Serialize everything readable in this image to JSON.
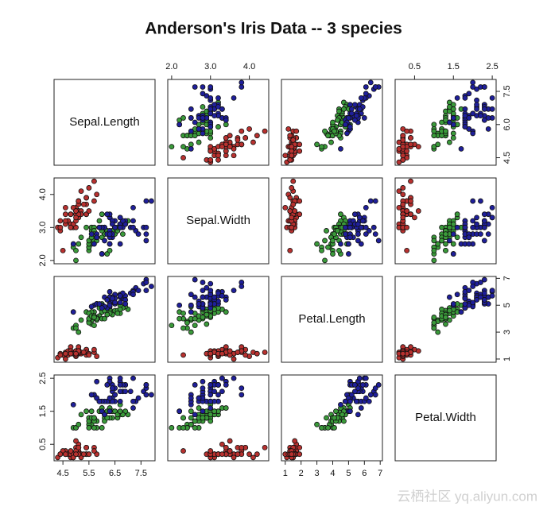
{
  "chart_data": {
    "type": "scatter_matrix",
    "title": "Anderson's Iris Data -- 3 species",
    "variables": [
      "Sepal.Length",
      "Sepal.Width",
      "Petal.Length",
      "Petal.Width"
    ],
    "axes": [
      {
        "lim": [
          4.16,
          8.04
        ],
        "xticks": [
          4.5,
          5.5,
          6.5,
          7.5
        ],
        "yticks": [
          4.5,
          {
            "value": 6,
            "label": "6.0"
          },
          7.5
        ]
      },
      {
        "lim": [
          1.9,
          4.5
        ],
        "xticks": [
          {
            "value": 2,
            "label": "2.0"
          },
          {
            "value": 3,
            "label": "3.0"
          },
          {
            "value": 4,
            "label": "4.0"
          }
        ],
        "yticks": [
          {
            "value": 2,
            "label": "2.0"
          },
          {
            "value": 3,
            "label": "3.0"
          },
          {
            "value": 4,
            "label": "4.0"
          }
        ]
      },
      {
        "lim": [
          0.76,
          7.14
        ],
        "xticks": [
          1,
          2,
          3,
          4,
          5,
          6,
          7
        ],
        "yticks": [
          1,
          3,
          5,
          7
        ]
      },
      {
        "lim": [
          0.0,
          2.6
        ],
        "xticks": [
          0.5,
          1.5,
          2.5
        ],
        "yticks": [
          0.5,
          1.5,
          2.5
        ]
      }
    ],
    "series": [
      {
        "color": "#b8312f",
        "values": [
          [
            5.1,
            3.5,
            1.4,
            0.2
          ],
          [
            4.9,
            3.0,
            1.4,
            0.2
          ],
          [
            4.7,
            3.2,
            1.3,
            0.2
          ],
          [
            4.6,
            3.1,
            1.5,
            0.2
          ],
          [
            5.0,
            3.6,
            1.4,
            0.2
          ],
          [
            5.4,
            3.9,
            1.7,
            0.4
          ],
          [
            4.6,
            3.4,
            1.4,
            0.3
          ],
          [
            5.0,
            3.4,
            1.5,
            0.2
          ],
          [
            4.4,
            2.9,
            1.4,
            0.2
          ],
          [
            4.9,
            3.1,
            1.5,
            0.1
          ],
          [
            5.4,
            3.7,
            1.5,
            0.2
          ],
          [
            4.8,
            3.4,
            1.6,
            0.2
          ],
          [
            4.8,
            3.0,
            1.4,
            0.1
          ],
          [
            4.3,
            3.0,
            1.1,
            0.1
          ],
          [
            5.8,
            4.0,
            1.2,
            0.2
          ],
          [
            5.7,
            4.4,
            1.5,
            0.4
          ],
          [
            5.4,
            3.9,
            1.3,
            0.4
          ],
          [
            5.1,
            3.5,
            1.4,
            0.3
          ],
          [
            5.7,
            3.8,
            1.7,
            0.3
          ],
          [
            5.1,
            3.8,
            1.5,
            0.3
          ],
          [
            5.4,
            3.4,
            1.7,
            0.2
          ],
          [
            5.1,
            3.7,
            1.5,
            0.4
          ],
          [
            4.6,
            3.6,
            1.0,
            0.2
          ],
          [
            5.1,
            3.3,
            1.7,
            0.5
          ],
          [
            4.8,
            3.4,
            1.9,
            0.2
          ],
          [
            5.0,
            3.0,
            1.6,
            0.2
          ],
          [
            5.0,
            3.4,
            1.6,
            0.4
          ],
          [
            5.2,
            3.5,
            1.5,
            0.2
          ],
          [
            5.2,
            3.4,
            1.4,
            0.2
          ],
          [
            4.7,
            3.2,
            1.6,
            0.2
          ],
          [
            4.8,
            3.1,
            1.6,
            0.2
          ],
          [
            5.4,
            3.4,
            1.5,
            0.4
          ],
          [
            5.2,
            4.1,
            1.5,
            0.1
          ],
          [
            5.5,
            4.2,
            1.4,
            0.2
          ],
          [
            4.9,
            3.1,
            1.5,
            0.2
          ],
          [
            5.0,
            3.2,
            1.2,
            0.2
          ],
          [
            5.5,
            3.5,
            1.3,
            0.2
          ],
          [
            4.9,
            3.6,
            1.4,
            0.1
          ],
          [
            4.4,
            3.0,
            1.3,
            0.2
          ],
          [
            5.1,
            3.4,
            1.5,
            0.2
          ],
          [
            5.0,
            3.5,
            1.3,
            0.3
          ],
          [
            4.5,
            2.3,
            1.3,
            0.3
          ],
          [
            4.4,
            3.2,
            1.3,
            0.2
          ],
          [
            5.0,
            3.5,
            1.6,
            0.6
          ],
          [
            5.1,
            3.8,
            1.9,
            0.4
          ],
          [
            4.8,
            3.0,
            1.4,
            0.3
          ],
          [
            5.1,
            3.8,
            1.6,
            0.2
          ],
          [
            4.6,
            3.2,
            1.4,
            0.2
          ],
          [
            5.3,
            3.7,
            1.5,
            0.2
          ],
          [
            5.0,
            3.3,
            1.4,
            0.2
          ]
        ]
      },
      {
        "color": "#3a9a3a",
        "values": [
          [
            7.0,
            3.2,
            4.7,
            1.4
          ],
          [
            6.4,
            3.2,
            4.5,
            1.5
          ],
          [
            6.9,
            3.1,
            4.9,
            1.5
          ],
          [
            5.5,
            2.3,
            4.0,
            1.3
          ],
          [
            6.5,
            2.8,
            4.6,
            1.5
          ],
          [
            5.7,
            2.8,
            4.5,
            1.3
          ],
          [
            6.3,
            3.3,
            4.7,
            1.6
          ],
          [
            4.9,
            2.4,
            3.3,
            1.0
          ],
          [
            6.6,
            2.9,
            4.6,
            1.3
          ],
          [
            5.2,
            2.7,
            3.9,
            1.4
          ],
          [
            5.0,
            2.0,
            3.5,
            1.0
          ],
          [
            5.9,
            3.0,
            4.2,
            1.5
          ],
          [
            6.0,
            2.2,
            4.0,
            1.0
          ],
          [
            6.1,
            2.9,
            4.7,
            1.4
          ],
          [
            5.6,
            2.9,
            3.6,
            1.3
          ],
          [
            6.7,
            3.1,
            4.4,
            1.4
          ],
          [
            5.6,
            3.0,
            4.5,
            1.5
          ],
          [
            5.8,
            2.7,
            4.1,
            1.0
          ],
          [
            6.2,
            2.2,
            4.5,
            1.5
          ],
          [
            5.6,
            2.5,
            3.9,
            1.1
          ],
          [
            5.9,
            3.2,
            4.8,
            1.8
          ],
          [
            6.1,
            2.8,
            4.0,
            1.3
          ],
          [
            6.3,
            2.5,
            4.9,
            1.5
          ],
          [
            6.1,
            2.8,
            4.7,
            1.2
          ],
          [
            6.4,
            2.9,
            4.3,
            1.3
          ],
          [
            6.6,
            3.0,
            4.4,
            1.4
          ],
          [
            6.8,
            2.8,
            4.8,
            1.4
          ],
          [
            6.7,
            3.0,
            5.0,
            1.7
          ],
          [
            6.0,
            2.9,
            4.5,
            1.5
          ],
          [
            5.7,
            2.6,
            3.5,
            1.0
          ],
          [
            5.5,
            2.4,
            3.8,
            1.1
          ],
          [
            5.5,
            2.4,
            3.7,
            1.0
          ],
          [
            5.8,
            2.7,
            3.9,
            1.2
          ],
          [
            6.0,
            2.7,
            5.1,
            1.6
          ],
          [
            5.4,
            3.0,
            4.5,
            1.5
          ],
          [
            6.0,
            3.4,
            4.5,
            1.6
          ],
          [
            6.7,
            3.1,
            4.7,
            1.5
          ],
          [
            6.3,
            2.3,
            4.4,
            1.3
          ],
          [
            5.6,
            3.0,
            4.1,
            1.3
          ],
          [
            5.5,
            2.5,
            4.0,
            1.3
          ],
          [
            5.5,
            2.6,
            4.4,
            1.2
          ],
          [
            6.1,
            3.0,
            4.6,
            1.4
          ],
          [
            5.8,
            2.6,
            4.0,
            1.2
          ],
          [
            5.0,
            2.3,
            3.3,
            1.0
          ],
          [
            5.6,
            2.7,
            4.2,
            1.3
          ],
          [
            5.7,
            3.0,
            4.2,
            1.2
          ],
          [
            5.7,
            2.9,
            4.2,
            1.3
          ],
          [
            6.2,
            2.9,
            4.3,
            1.3
          ],
          [
            5.1,
            2.5,
            3.0,
            1.1
          ],
          [
            5.7,
            2.8,
            4.1,
            1.3
          ]
        ]
      },
      {
        "color": "#1f1f9a",
        "values": [
          [
            6.3,
            3.3,
            6.0,
            2.5
          ],
          [
            5.8,
            2.7,
            5.1,
            1.9
          ],
          [
            7.1,
            3.0,
            5.9,
            2.1
          ],
          [
            6.3,
            2.9,
            5.6,
            1.8
          ],
          [
            6.5,
            3.0,
            5.8,
            2.2
          ],
          [
            7.6,
            3.0,
            6.6,
            2.1
          ],
          [
            4.9,
            2.5,
            4.5,
            1.7
          ],
          [
            7.3,
            2.9,
            6.3,
            1.8
          ],
          [
            6.7,
            2.5,
            5.8,
            1.8
          ],
          [
            7.2,
            3.6,
            6.1,
            2.5
          ],
          [
            6.5,
            3.2,
            5.1,
            2.0
          ],
          [
            6.4,
            2.7,
            5.3,
            1.9
          ],
          [
            6.8,
            3.0,
            5.5,
            2.1
          ],
          [
            5.7,
            2.5,
            5.0,
            2.0
          ],
          [
            5.8,
            2.8,
            5.1,
            2.4
          ],
          [
            6.4,
            3.2,
            5.3,
            2.3
          ],
          [
            6.5,
            3.0,
            5.5,
            1.8
          ],
          [
            7.7,
            3.8,
            6.7,
            2.2
          ],
          [
            7.7,
            2.6,
            6.9,
            2.3
          ],
          [
            6.0,
            2.2,
            5.0,
            1.5
          ],
          [
            6.9,
            3.2,
            5.7,
            2.3
          ],
          [
            5.6,
            2.8,
            4.9,
            2.0
          ],
          [
            7.7,
            2.8,
            6.7,
            2.0
          ],
          [
            6.3,
            2.7,
            4.9,
            1.8
          ],
          [
            6.7,
            3.3,
            5.7,
            2.1
          ],
          [
            7.2,
            3.2,
            6.0,
            1.8
          ],
          [
            6.2,
            2.8,
            4.8,
            1.8
          ],
          [
            6.1,
            3.0,
            4.9,
            1.8
          ],
          [
            6.4,
            2.8,
            5.6,
            2.1
          ],
          [
            7.2,
            3.0,
            5.8,
            1.6
          ],
          [
            7.4,
            2.8,
            6.1,
            1.9
          ],
          [
            7.9,
            3.8,
            6.4,
            2.0
          ],
          [
            6.4,
            2.8,
            5.6,
            2.2
          ],
          [
            6.3,
            2.8,
            5.1,
            1.5
          ],
          [
            6.1,
            2.6,
            5.6,
            1.4
          ],
          [
            7.7,
            3.0,
            6.1,
            2.3
          ],
          [
            6.3,
            3.4,
            5.6,
            2.4
          ],
          [
            6.4,
            3.1,
            5.5,
            1.8
          ],
          [
            6.0,
            3.0,
            4.8,
            1.8
          ],
          [
            6.9,
            3.1,
            5.4,
            2.1
          ],
          [
            6.7,
            3.1,
            5.6,
            2.4
          ],
          [
            6.9,
            3.1,
            5.1,
            2.3
          ],
          [
            5.8,
            2.7,
            5.1,
            1.9
          ],
          [
            6.8,
            3.2,
            5.9,
            2.3
          ],
          [
            6.7,
            3.3,
            5.7,
            2.5
          ],
          [
            6.7,
            3.0,
            5.2,
            2.3
          ],
          [
            6.3,
            2.5,
            5.0,
            1.9
          ],
          [
            6.5,
            3.0,
            5.2,
            2.0
          ],
          [
            6.2,
            3.4,
            5.4,
            2.3
          ],
          [
            5.9,
            3.0,
            5.1,
            1.8
          ]
        ]
      }
    ]
  },
  "watermark": "云栖社区 yq.aliyun.com"
}
